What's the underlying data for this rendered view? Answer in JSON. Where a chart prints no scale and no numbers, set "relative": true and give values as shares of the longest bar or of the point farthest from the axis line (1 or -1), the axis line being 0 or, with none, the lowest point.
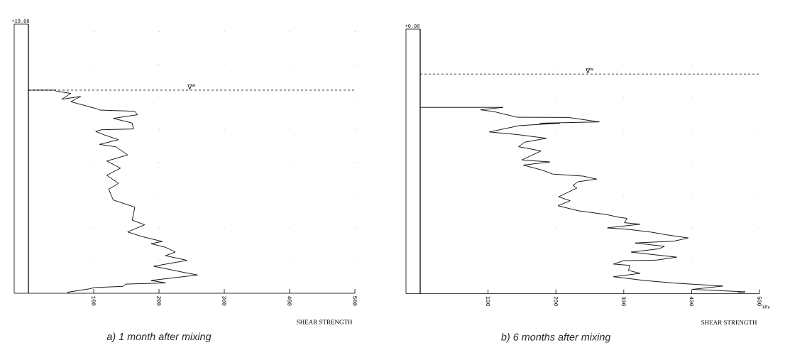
{
  "chart_data": [
    {
      "type": "line",
      "title": "a) 1 month after mixing",
      "xlabel": "SHEAR STRENGTH",
      "relative": true,
      "color": "#000000",
      "line_style": "solid",
      "x": [
        0,
        41,
        43,
        65,
        51,
        80,
        65,
        105,
        109,
        163,
        167,
        130,
        159,
        161,
        112,
        103,
        116,
        138,
        109,
        134,
        152,
        120,
        141,
        120,
        138,
        123,
        130,
        163,
        159,
        178,
        152,
        174,
        205,
        188,
        210,
        225,
        210,
        243,
        192,
        236,
        259,
        188,
        210,
        149,
        145,
        101,
        94,
        60,
        62
      ],
      "values": [
        1.0,
        1.0,
        0.995,
        0.984,
        0.955,
        0.969,
        0.943,
        0.908,
        0.902,
        0.896,
        0.879,
        0.861,
        0.838,
        0.809,
        0.805,
        0.797,
        0.78,
        0.756,
        0.733,
        0.721,
        0.681,
        0.651,
        0.616,
        0.581,
        0.541,
        0.512,
        0.459,
        0.424,
        0.36,
        0.337,
        0.302,
        0.279,
        0.255,
        0.244,
        0.226,
        0.203,
        0.185,
        0.162,
        0.133,
        0.104,
        0.09,
        0.063,
        0.051,
        0.045,
        0.034,
        0.028,
        0.022,
        0.005,
        0.0
      ],
      "xlim": [
        0,
        500
      ],
      "xticks": [
        100,
        200,
        300,
        400,
        500
      ],
      "grid": "x",
      "tick_labels": "x",
      "ref_lines": [
        {
          "axis": "y",
          "value": 1.0,
          "label": "∇$^{w}$",
          "line_style": "dashed"
        }
      ],
      "annotations": [
        "+19.00"
      ]
    },
    {
      "type": "line",
      "title": "b) 6 months after mixing",
      "xlabel": "SHEAR STRENGTH",
      "relative": true,
      "color": "#000000",
      "line_style": "solid",
      "x": [
        0,
        122,
        89,
        109,
        143,
        218,
        264,
        176,
        206,
        146,
        102,
        143,
        186,
        154,
        145,
        178,
        150,
        191,
        152,
        180,
        195,
        240,
        260,
        233,
        225,
        231,
        204,
        221,
        203,
        233,
        274,
        292,
        305,
        301,
        324,
        276,
        307,
        341,
        363,
        395,
        374,
        317,
        360,
        352,
        311,
        333,
        378,
        348,
        300,
        285,
        309,
        307,
        324,
        285,
        330,
        374,
        446,
        401,
        479,
        468
      ],
      "values": [
        1.0,
        1.0,
        0.987,
        0.977,
        0.947,
        0.946,
        0.922,
        0.915,
        0.915,
        0.902,
        0.868,
        0.854,
        0.834,
        0.813,
        0.789,
        0.766,
        0.718,
        0.707,
        0.69,
        0.663,
        0.642,
        0.631,
        0.615,
        0.601,
        0.581,
        0.567,
        0.52,
        0.499,
        0.472,
        0.445,
        0.425,
        0.411,
        0.404,
        0.381,
        0.373,
        0.353,
        0.345,
        0.33,
        0.316,
        0.299,
        0.282,
        0.272,
        0.254,
        0.241,
        0.223,
        0.214,
        0.196,
        0.18,
        0.177,
        0.159,
        0.152,
        0.125,
        0.109,
        0.091,
        0.071,
        0.057,
        0.041,
        0.023,
        0.01,
        0.004
      ],
      "xlim": [
        0,
        500
      ],
      "xticks": [
        100,
        200,
        300,
        400,
        500
      ],
      "grid": "x",
      "tick_labels": "x",
      "ref_lines": [
        {
          "axis": "y",
          "value": 1.179,
          "label": "∇$^{w}$",
          "line_style": "dashed"
        }
      ],
      "annotations": [
        "+0.00",
        "kPa"
      ]
    }
  ]
}
